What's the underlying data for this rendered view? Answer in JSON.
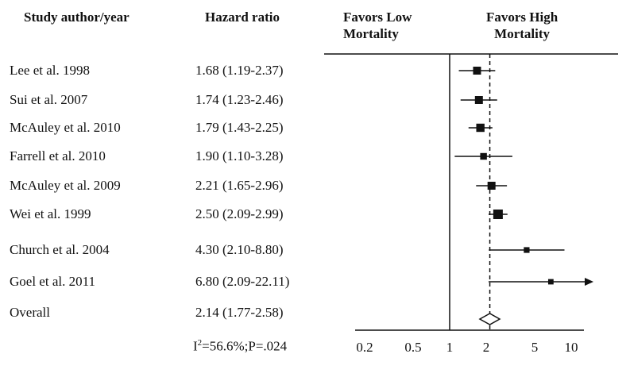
{
  "headers": {
    "study": "Study author/year",
    "hazard_ratio": "Hazard ratio",
    "favors_low": [
      "Favors Low",
      "Mortality"
    ],
    "favors_high": [
      "Favors High",
      "Mortality"
    ]
  },
  "heterogeneity": "I²=56.6%;P=.024",
  "chart_data": {
    "type": "forest",
    "scale": "log",
    "reference_line": 1,
    "pooled_line": 2.14,
    "xticks": [
      0.2,
      0.5,
      1,
      2,
      5,
      10
    ],
    "xtick_labels": [
      "0.2",
      "0.5",
      "1",
      "2",
      "5",
      "10"
    ],
    "xlim": [
      0.15,
      12
    ],
    "studies": [
      {
        "label": "Lee et al. 1998",
        "hr_text": "1.68 (1.19-2.37)",
        "hr": 1.68,
        "lo": 1.19,
        "hi": 2.37,
        "weight": 0.75
      },
      {
        "label": "Sui et al. 2007",
        "hr_text": "1.74 (1.23-2.46)",
        "hr": 1.74,
        "lo": 1.23,
        "hi": 2.46,
        "weight": 0.75
      },
      {
        "label": "McAuley et al. 2010",
        "hr_text": "1.79 (1.43-2.25)",
        "hr": 1.79,
        "lo": 1.43,
        "hi": 2.25,
        "weight": 0.8
      },
      {
        "label": "Farrell et al. 2010",
        "hr_text": "1.90 (1.10-3.28)",
        "hr": 1.9,
        "lo": 1.1,
        "hi": 3.28,
        "weight": 0.55
      },
      {
        "label": "McAuley et al. 2009",
        "hr_text": "2.21 (1.65-2.96)",
        "hr": 2.21,
        "lo": 1.65,
        "hi": 2.96,
        "weight": 0.75
      },
      {
        "label": "Wei et al. 1999",
        "hr_text": "2.50 (2.09-2.99)",
        "hr": 2.5,
        "lo": 2.09,
        "hi": 2.99,
        "weight": 1.0
      },
      {
        "label": "Church et al. 2004",
        "hr_text": "4.30 (2.10-8.80)",
        "hr": 4.3,
        "lo": 2.1,
        "hi": 8.8,
        "weight": 0.4
      },
      {
        "label": "Goel et al. 2011",
        "hr_text": "6.80 (2.09-22.11)",
        "hr": 6.8,
        "lo": 2.09,
        "hi": 22.11,
        "weight": 0.35
      }
    ],
    "overall": {
      "label": "Overall",
      "hr_text": "2.14 (1.77-2.58)",
      "hr": 2.14,
      "lo": 1.77,
      "hi": 2.58
    }
  }
}
